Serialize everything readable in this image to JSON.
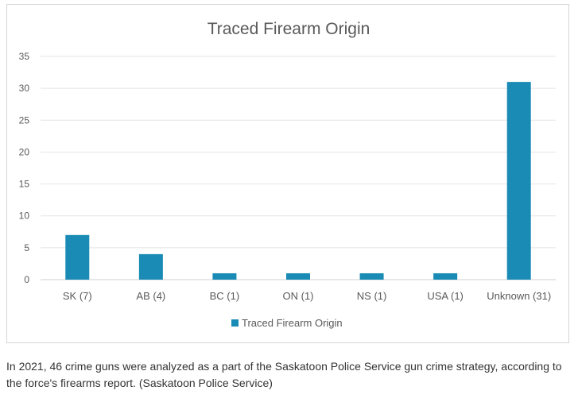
{
  "chart_data": {
    "type": "bar",
    "title": "Traced Firearm Origin",
    "categories": [
      "SK (7)",
      "AB (4)",
      "BC (1)",
      "ON (1)",
      "NS (1)",
      "USA (1)",
      "Unknown (31)"
    ],
    "series": [
      {
        "name": "Traced Firearm Origin",
        "values": [
          7,
          4,
          1,
          1,
          1,
          1,
          31
        ]
      }
    ],
    "y_ticks": [
      "0",
      "5",
      "10",
      "15",
      "20",
      "25",
      "30",
      "35"
    ],
    "ylim": [
      0,
      35
    ],
    "grid": true,
    "legend_position": "bottom",
    "bar_color": "#1a8bb4",
    "xlabel": "",
    "ylabel": ""
  },
  "caption": "In 2021, 46 crime guns were analyzed as a part of the Saskatoon Police Service gun crime strategy, according to the force's firearms report. (Saskatoon Police Service)"
}
